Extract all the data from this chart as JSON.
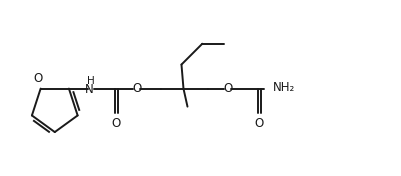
{
  "bg_color": "#ffffff",
  "line_color": "#1a1a1a",
  "line_width": 1.4,
  "figsize": [
    4.02,
    1.76
  ],
  "dpi": 100,
  "xlim": [
    0.0,
    10.0
  ],
  "ylim": [
    0.5,
    4.8
  ]
}
